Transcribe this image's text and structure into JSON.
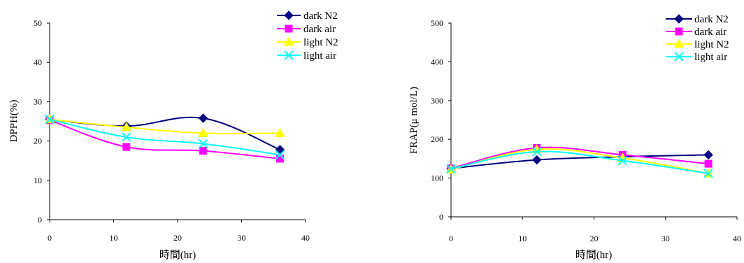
{
  "chart_data": [
    {
      "type": "line",
      "xlabel": "時間(hr)",
      "ylabel": "DPPH(%)",
      "xlim": [
        0,
        40
      ],
      "ylim": [
        0,
        50
      ],
      "xticks": [
        "0",
        "10",
        "20",
        "30",
        "40"
      ],
      "yticks": [
        "0",
        "10",
        "20",
        "30",
        "40",
        "50"
      ],
      "grid": false,
      "legend": "top-right",
      "x": [
        0,
        12,
        24,
        36
      ],
      "series": [
        {
          "name": "dark N2",
          "color": "#000080",
          "marker": "diamond",
          "values": [
            25.5,
            23.8,
            25.8,
            17.8
          ]
        },
        {
          "name": "dark air",
          "color": "#ff00ff",
          "marker": "square",
          "values": [
            25.3,
            18.5,
            17.5,
            15.5
          ]
        },
        {
          "name": "light N2",
          "color": "#ffff00",
          "marker": "triangle",
          "values": [
            25.5,
            23.5,
            22.0,
            22.0
          ]
        },
        {
          "name": "light air",
          "color": "#00ffff",
          "marker": "x",
          "values": [
            25.5,
            21.0,
            19.3,
            16.5
          ]
        }
      ]
    },
    {
      "type": "line",
      "xlabel": "時間(hr)",
      "ylabel": "FRAP(μ mol/L)",
      "xlim": [
        0,
        40
      ],
      "ylim": [
        0,
        500
      ],
      "xticks": [
        "0",
        "10",
        "20",
        "30",
        "40"
      ],
      "yticks": [
        "0",
        "100",
        "200",
        "300",
        "400",
        "500"
      ],
      "grid": false,
      "legend": "top-right",
      "x": [
        0,
        12,
        24,
        36
      ],
      "series": [
        {
          "name": "dark N2",
          "color": "#000080",
          "marker": "diamond",
          "values": [
            125,
            147,
            155,
            160
          ]
        },
        {
          "name": "dark air",
          "color": "#ff00ff",
          "marker": "square",
          "values": [
            125,
            178,
            160,
            137
          ]
        },
        {
          "name": "light N2",
          "color": "#ffff00",
          "marker": "triangle",
          "values": [
            122,
            174,
            152,
            112
          ]
        },
        {
          "name": "light air",
          "color": "#00ffff",
          "marker": "x",
          "values": [
            124,
            168,
            145,
            112
          ]
        }
      ]
    }
  ]
}
